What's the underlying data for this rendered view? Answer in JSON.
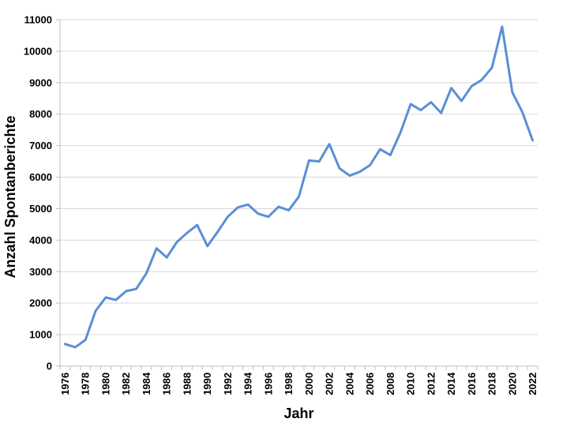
{
  "chart_data": {
    "type": "line",
    "title": "",
    "xlabel": "Jahr",
    "ylabel": "Anzahl Spontanberichte",
    "ylim": [
      0,
      11000
    ],
    "y_ticks": [
      0,
      1000,
      2000,
      3000,
      4000,
      5000,
      6000,
      7000,
      8000,
      9000,
      10000,
      11000
    ],
    "xlim": [
      1976,
      2022
    ],
    "x_ticks": [
      1976,
      1978,
      1980,
      1982,
      1984,
      1986,
      1988,
      1990,
      1992,
      1994,
      1996,
      1998,
      2000,
      2002,
      2004,
      2006,
      2008,
      2010,
      2012,
      2014,
      2016,
      2018,
      2020,
      2022
    ],
    "grid": "horizontal",
    "series": [
      {
        "color": "#5b8fd6",
        "x": [
          1976,
          1977,
          1978,
          1979,
          1980,
          1981,
          1982,
          1983,
          1984,
          1985,
          1986,
          1987,
          1988,
          1989,
          1990,
          1991,
          1992,
          1993,
          1994,
          1995,
          1996,
          1997,
          1998,
          1999,
          2000,
          2001,
          2002,
          2003,
          2004,
          2005,
          2006,
          2007,
          2008,
          2009,
          2010,
          2011,
          2012,
          2013,
          2014,
          2015,
          2016,
          2017,
          2018,
          2019,
          2020,
          2021,
          2022
        ],
        "values": [
          700,
          600,
          830,
          1750,
          2180,
          2100,
          2380,
          2450,
          2950,
          3740,
          3450,
          3940,
          4230,
          4480,
          3810,
          4260,
          4740,
          5040,
          5130,
          4840,
          4740,
          5060,
          4950,
          5380,
          6530,
          6500,
          7050,
          6280,
          6050,
          6170,
          6380,
          6890,
          6700,
          7420,
          8320,
          8130,
          8380,
          8040,
          8830,
          8420,
          8890,
          9090,
          9480,
          10780,
          8700,
          8060,
          7170
        ]
      }
    ]
  }
}
